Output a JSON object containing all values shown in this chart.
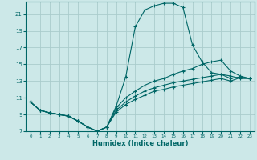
{
  "xlabel": "Humidex (Indice chaleur)",
  "bg_color": "#cce8e8",
  "grid_color": "#aacccc",
  "line_color": "#006666",
  "xlim": [
    -0.5,
    23.5
  ],
  "ylim": [
    7,
    22.5
  ],
  "xticks": [
    0,
    1,
    2,
    3,
    4,
    5,
    6,
    7,
    8,
    9,
    10,
    11,
    12,
    13,
    14,
    15,
    16,
    17,
    18,
    19,
    20,
    21,
    22,
    23
  ],
  "yticks": [
    7,
    9,
    11,
    13,
    15,
    17,
    19,
    21
  ],
  "curve1_x": [
    0,
    1,
    2,
    3,
    4,
    5,
    6,
    7,
    8,
    9,
    10,
    11,
    12,
    13,
    14,
    15,
    16,
    17,
    18,
    19,
    20,
    21,
    22,
    23
  ],
  "curve1_y": [
    10.5,
    9.5,
    9.2,
    9.0,
    8.8,
    8.2,
    7.5,
    7.0,
    7.5,
    10.0,
    13.5,
    19.5,
    21.5,
    22.0,
    22.3,
    22.3,
    21.8,
    17.3,
    15.3,
    14.0,
    13.8,
    13.6,
    13.3,
    13.3
  ],
  "curve2_x": [
    0,
    1,
    2,
    3,
    4,
    5,
    6,
    7,
    8,
    9,
    10,
    11,
    12,
    13,
    14,
    15,
    16,
    17,
    18,
    19,
    20,
    21,
    22,
    23
  ],
  "curve2_y": [
    10.5,
    9.5,
    9.2,
    9.0,
    8.8,
    8.2,
    7.5,
    7.0,
    7.5,
    9.8,
    11.0,
    11.8,
    12.5,
    13.0,
    13.3,
    13.8,
    14.2,
    14.5,
    15.0,
    15.3,
    15.5,
    14.2,
    13.6,
    13.3
  ],
  "curve3_x": [
    0,
    1,
    2,
    3,
    4,
    5,
    6,
    7,
    8,
    9,
    10,
    11,
    12,
    13,
    14,
    15,
    16,
    17,
    18,
    19,
    20,
    21,
    22,
    23
  ],
  "curve3_y": [
    10.5,
    9.5,
    9.2,
    9.0,
    8.8,
    8.2,
    7.5,
    7.0,
    7.5,
    9.5,
    10.5,
    11.2,
    11.8,
    12.2,
    12.5,
    12.8,
    13.0,
    13.2,
    13.4,
    13.6,
    13.8,
    13.3,
    13.5,
    13.3
  ],
  "curve4_x": [
    0,
    1,
    2,
    3,
    4,
    5,
    6,
    7,
    8,
    9,
    10,
    11,
    12,
    13,
    14,
    15,
    16,
    17,
    18,
    19,
    20,
    21,
    22,
    23
  ],
  "curve4_y": [
    10.5,
    9.5,
    9.2,
    9.0,
    8.8,
    8.2,
    7.5,
    7.0,
    7.5,
    9.3,
    10.2,
    10.8,
    11.3,
    11.8,
    12.0,
    12.3,
    12.5,
    12.7,
    12.9,
    13.1,
    13.3,
    13.0,
    13.4,
    13.3
  ]
}
